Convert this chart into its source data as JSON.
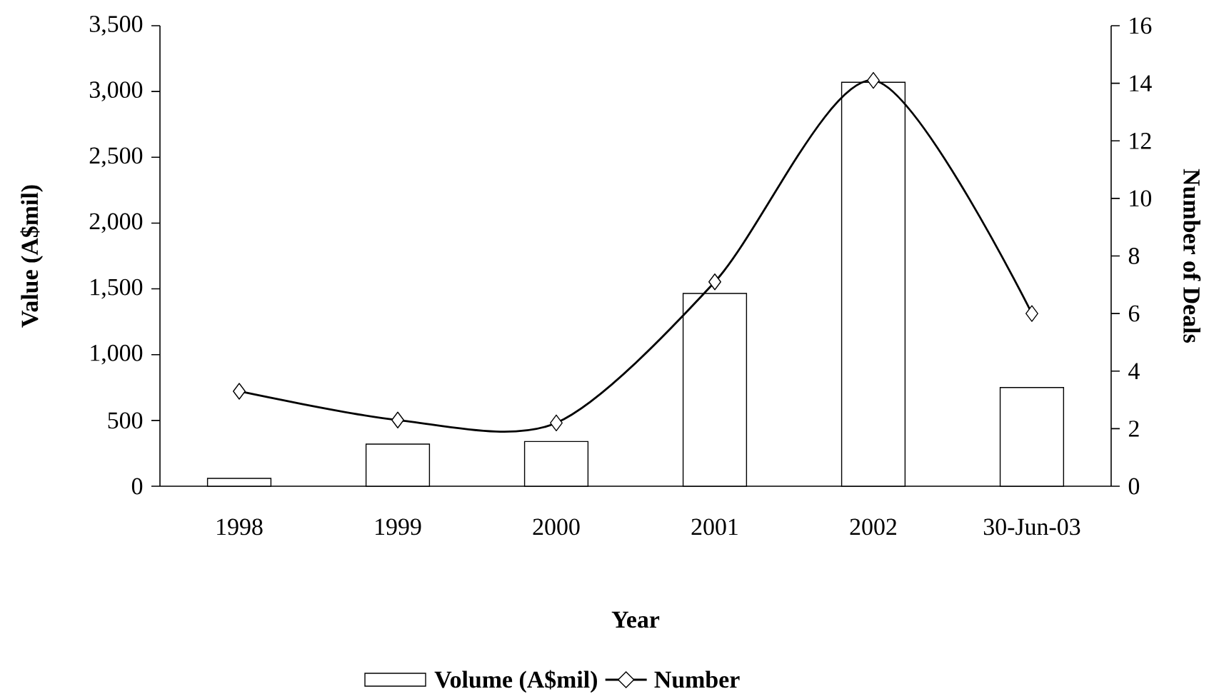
{
  "chart_data": {
    "type": "bar",
    "xlabel": "Year",
    "ylabel": "Value (A$mil)",
    "y2label": "Number of Deals",
    "legend": "bottom",
    "categories": [
      "1998",
      "1999",
      "2000",
      "2001",
      "2002",
      "30-Jun-03"
    ],
    "ylim": [
      0,
      3500
    ],
    "yticks": [
      0,
      500,
      {
        "value": 1000,
        "label": "1,000"
      },
      {
        "value": 1500,
        "label": "1,500"
      },
      {
        "value": 2000,
        "label": "2,000"
      },
      {
        "value": 2500,
        "label": "2,500"
      },
      {
        "value": 3000,
        "label": "3,000"
      },
      {
        "value": 3500,
        "label": "3,500"
      }
    ],
    "y2lim": [
      0,
      16
    ],
    "y2ticks": [
      0,
      2,
      4,
      6,
      8,
      10,
      12,
      14,
      16
    ],
    "series": [
      {
        "name": "Volume (A$mil)",
        "color": "#ffffff",
        "values": [
          60,
          320,
          340,
          1465,
          3070,
          750
        ]
      },
      {
        "name": "Number",
        "type": "line",
        "axis": "y2",
        "color": "#000000",
        "marker": "diamond",
        "line_style": "solid",
        "values": [
          3.3,
          2.3,
          2.2,
          7.1,
          14.1,
          6.0
        ]
      }
    ]
  }
}
